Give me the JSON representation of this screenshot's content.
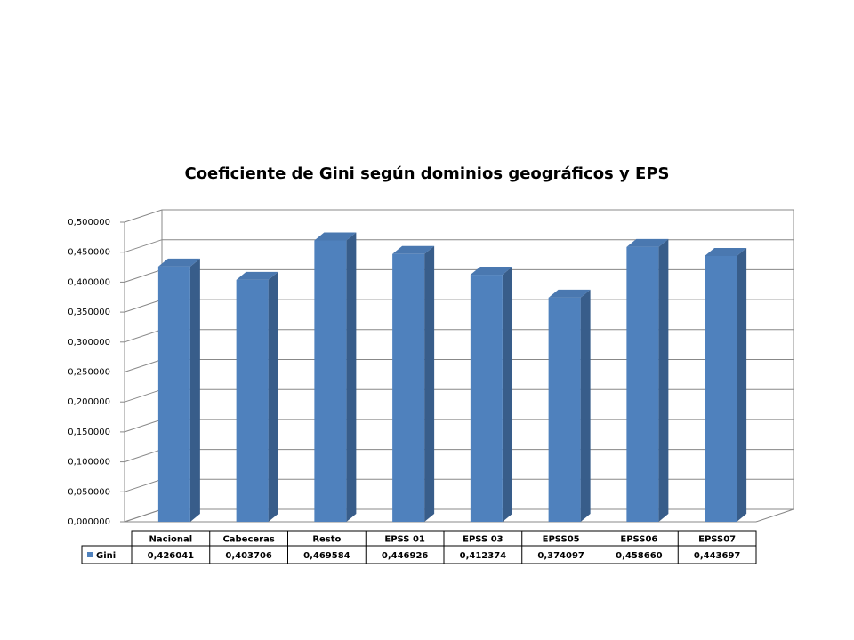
{
  "chart_data": {
    "type": "bar3d",
    "title": "Coeficiente de Gini según dominios geográficos y EPS",
    "categories": [
      "Nacional",
      "Cabeceras",
      "Resto",
      "EPSS 01",
      "EPSS 03",
      "EPSS05",
      "EPSS06",
      "EPSS07"
    ],
    "series": [
      {
        "name": "Gini",
        "color": "#4f81bd",
        "values": [
          0.426041,
          0.403706,
          0.469584,
          0.446926,
          0.412374,
          0.374097,
          0.45866,
          0.443697
        ],
        "value_labels": [
          "0,426041",
          "0,403706",
          "0,469584",
          "0,446926",
          "0,412374",
          "0,374097",
          "0,458660",
          "0,443697"
        ]
      }
    ],
    "ylim": [
      0,
      0.5
    ],
    "yticks": [
      {
        "value": 0,
        "label": "0,000000"
      },
      {
        "value": 0.05,
        "label": "0,050000"
      },
      {
        "value": 0.1,
        "label": "0,100000"
      },
      {
        "value": 0.15,
        "label": "0,150000"
      },
      {
        "value": 0.2,
        "label": "0,200000"
      },
      {
        "value": 0.25,
        "label": "0,250000"
      },
      {
        "value": 0.3,
        "label": "0,300000"
      },
      {
        "value": 0.35,
        "label": "0,350000"
      },
      {
        "value": 0.4,
        "label": "0,400000"
      },
      {
        "value": 0.45,
        "label": "0,450000"
      },
      {
        "value": 0.5,
        "label": "0,500000"
      }
    ],
    "grid": true
  }
}
